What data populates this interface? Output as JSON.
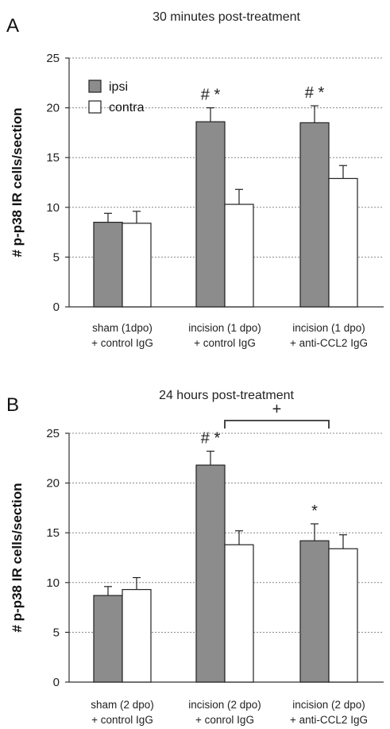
{
  "chart_data": [
    {
      "panel_label": "A",
      "type": "bar",
      "title": "30 minutes post-treatment",
      "ylabel": "# p-p38 IR cells/section",
      "ylim": [
        0,
        25
      ],
      "yticks": [
        0,
        5,
        10,
        15,
        20,
        25
      ],
      "grid": true,
      "categories": [
        [
          "sham (1dpo)",
          "+ control IgG"
        ],
        [
          "incision (1 dpo)",
          "+ control IgG"
        ],
        [
          "incision (1 dpo)",
          "+ anti-CCL2 IgG"
        ]
      ],
      "series": [
        {
          "name": "ipsi",
          "color": "#8c8c8c",
          "values": [
            8.5,
            18.6,
            18.5
          ],
          "errors": [
            0.9,
            1.4,
            1.7
          ]
        },
        {
          "name": "contra",
          "color": "#ffffff",
          "values": [
            8.4,
            10.3,
            12.9
          ],
          "errors": [
            1.2,
            1.5,
            1.3
          ]
        }
      ],
      "legend": {
        "position": "top-left",
        "entries": [
          "ipsi",
          "contra"
        ]
      },
      "annotations": [
        {
          "text": "# *",
          "category": 1,
          "series": 0
        },
        {
          "text": "# *",
          "category": 2,
          "series": 0
        }
      ]
    },
    {
      "panel_label": "B",
      "type": "bar",
      "title": "24 hours post-treatment",
      "ylabel": "# p-p38 IR cells/section",
      "ylim": [
        0,
        25
      ],
      "yticks": [
        0,
        5,
        10,
        15,
        20,
        25
      ],
      "grid": true,
      "categories": [
        [
          "sham (2 dpo)",
          "+ control IgG"
        ],
        [
          "incision (2 dpo)",
          "+ conrol IgG"
        ],
        [
          "incision (2 dpo)",
          "+ anti-CCL2 IgG"
        ]
      ],
      "series": [
        {
          "name": "ipsi",
          "color": "#8c8c8c",
          "values": [
            8.7,
            21.8,
            14.2
          ],
          "errors": [
            0.9,
            1.4,
            1.7
          ]
        },
        {
          "name": "contra",
          "color": "#ffffff",
          "values": [
            9.3,
            13.8,
            13.4
          ],
          "errors": [
            1.2,
            1.4,
            1.4
          ]
        }
      ],
      "annotations": [
        {
          "text": "# *",
          "category": 1,
          "series": 0
        },
        {
          "text": "*",
          "category": 2,
          "series": 0
        }
      ],
      "bracket": {
        "text": "+",
        "from_category": 1,
        "to_category": 2
      }
    }
  ]
}
